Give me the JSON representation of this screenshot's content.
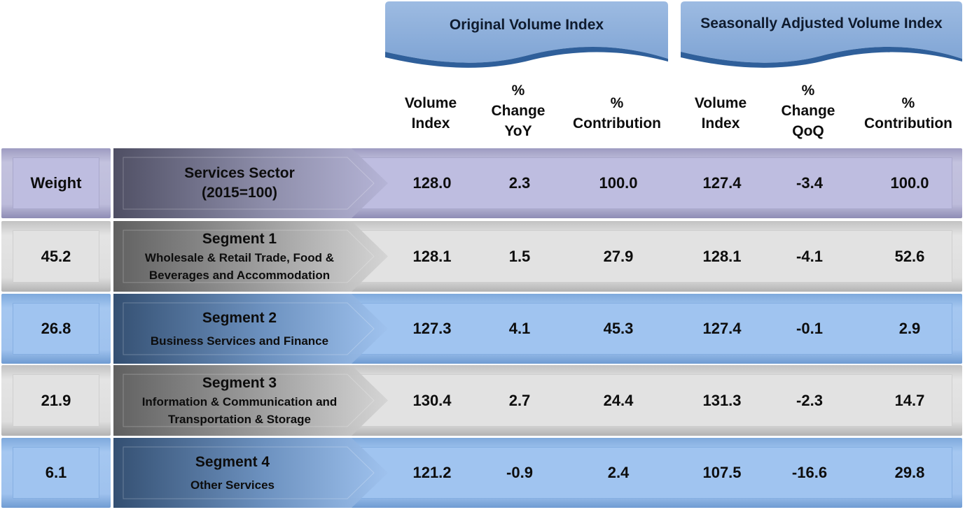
{
  "groups": {
    "original": "Original Volume Index",
    "seasonal": "Seasonally Adjusted Volume Index"
  },
  "columns": [
    [
      "Volume",
      "Index"
    ],
    [
      "%",
      "Change",
      "YoY"
    ],
    [
      "%",
      "Contribution"
    ],
    [
      "Volume",
      "Index"
    ],
    [
      "%",
      "Change",
      "QoQ"
    ],
    [
      "%",
      "Contribution"
    ]
  ],
  "rows": [
    {
      "weight": "Weight",
      "title": "Services Sector",
      "subtitle": "(2015=100)",
      "values": [
        "128.0",
        "2.3",
        "100.0",
        "127.4",
        "-3.4",
        "100.0"
      ]
    },
    {
      "weight": "45.2",
      "title": "Segment 1",
      "subtitle": "Wholesale & Retail Trade, Food & Beverages and Accommodation",
      "values": [
        "128.1",
        "1.5",
        "27.9",
        "128.1",
        "-4.1",
        "52.6"
      ]
    },
    {
      "weight": "26.8",
      "title": "Segment 2",
      "subtitle": "Business Services and Finance",
      "values": [
        "127.3",
        "4.1",
        "45.3",
        "127.4",
        "-0.1",
        "2.9"
      ]
    },
    {
      "weight": "21.9",
      "title": "Segment 3",
      "subtitle": "Information & Communication and Transportation & Storage",
      "values": [
        "130.4",
        "2.7",
        "24.4",
        "131.3",
        "-2.3",
        "14.7"
      ]
    },
    {
      "weight": "6.1",
      "title": "Segment 4",
      "subtitle": "Other Services",
      "values": [
        "121.2",
        "-0.9",
        "2.4",
        "107.5",
        "-16.6",
        "29.8"
      ]
    }
  ],
  "colors": {
    "lavender": "#bebde0",
    "grey": "#e2e2e2",
    "blue": "#a0c4f0",
    "banner": "#8fb0dc",
    "wave": "#2f5f9a"
  }
}
